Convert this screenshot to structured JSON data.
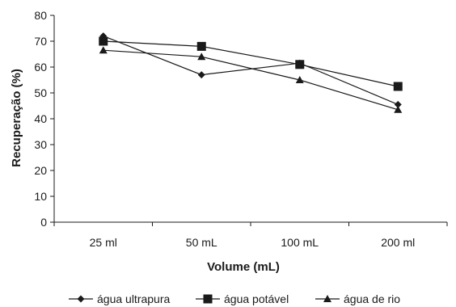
{
  "chart_data": {
    "type": "line",
    "xlabel": "Volume (mL)",
    "ylabel": "Recuperação (%)",
    "categories": [
      "25 ml",
      "50 mL",
      "100 mL",
      "200 ml"
    ],
    "ylim": [
      0,
      80
    ],
    "yticks": [
      0,
      10,
      20,
      30,
      40,
      50,
      60,
      70,
      80
    ],
    "grid": false,
    "legend_position": "bottom",
    "series": [
      {
        "name": "água ultrapura",
        "marker": "diamond",
        "values": [
          72,
          57,
          61.5,
          45.5
        ]
      },
      {
        "name": "água potável",
        "marker": "square",
        "values": [
          70,
          68,
          61,
          52.5
        ]
      },
      {
        "name": "água de rio",
        "marker": "triangle",
        "values": [
          66.5,
          64,
          55,
          43.5
        ]
      }
    ],
    "colors": {
      "line": "#1a1a1a",
      "axis": "#1a1a1a"
    }
  }
}
